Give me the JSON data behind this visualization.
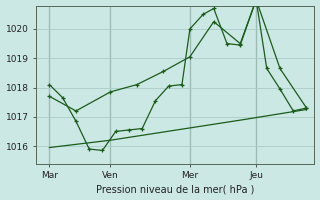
{
  "background_color": "#cce8e4",
  "grid_color": "#aaccc8",
  "line_color": "#1a5c1a",
  "title": "Pression niveau de la mer( hPa )",
  "xlim": [
    0,
    10.5
  ],
  "ylim": [
    1015.4,
    1020.8
  ],
  "yticks": [
    1016,
    1017,
    1018,
    1019,
    1020
  ],
  "xtick_labels": [
    "Mar",
    "Ven",
    "Mer",
    "Jeu"
  ],
  "xtick_positions": [
    0.5,
    2.8,
    5.8,
    8.3
  ],
  "vlines": [
    0.5,
    2.8,
    5.8,
    8.3
  ],
  "series1_x": [
    0.5,
    1.0,
    1.5,
    2.0,
    2.5,
    3.0,
    3.5,
    4.0,
    4.5,
    5.0,
    5.5,
    5.8,
    6.3,
    6.7,
    7.2,
    7.7,
    8.3,
    8.7,
    9.2,
    9.7,
    10.2
  ],
  "series1_y": [
    1018.1,
    1017.65,
    1016.85,
    1015.9,
    1015.85,
    1016.5,
    1016.55,
    1016.6,
    1017.55,
    1018.05,
    1018.1,
    1020.0,
    1020.5,
    1020.7,
    1019.5,
    1019.45,
    1021.0,
    1018.65,
    1017.95,
    1017.2,
    1017.3
  ],
  "series2_x": [
    0.5,
    1.5,
    2.8,
    3.8,
    4.8,
    5.8,
    6.7,
    7.7,
    8.3,
    9.2,
    10.2
  ],
  "series2_y": [
    1017.7,
    1017.2,
    1017.85,
    1018.1,
    1018.55,
    1019.05,
    1020.25,
    1019.5,
    1021.0,
    1018.65,
    1017.3
  ],
  "series3_x": [
    0.5,
    2.8,
    5.3,
    7.8,
    10.2
  ],
  "series3_y": [
    1015.95,
    1016.2,
    1016.55,
    1016.9,
    1017.25
  ]
}
